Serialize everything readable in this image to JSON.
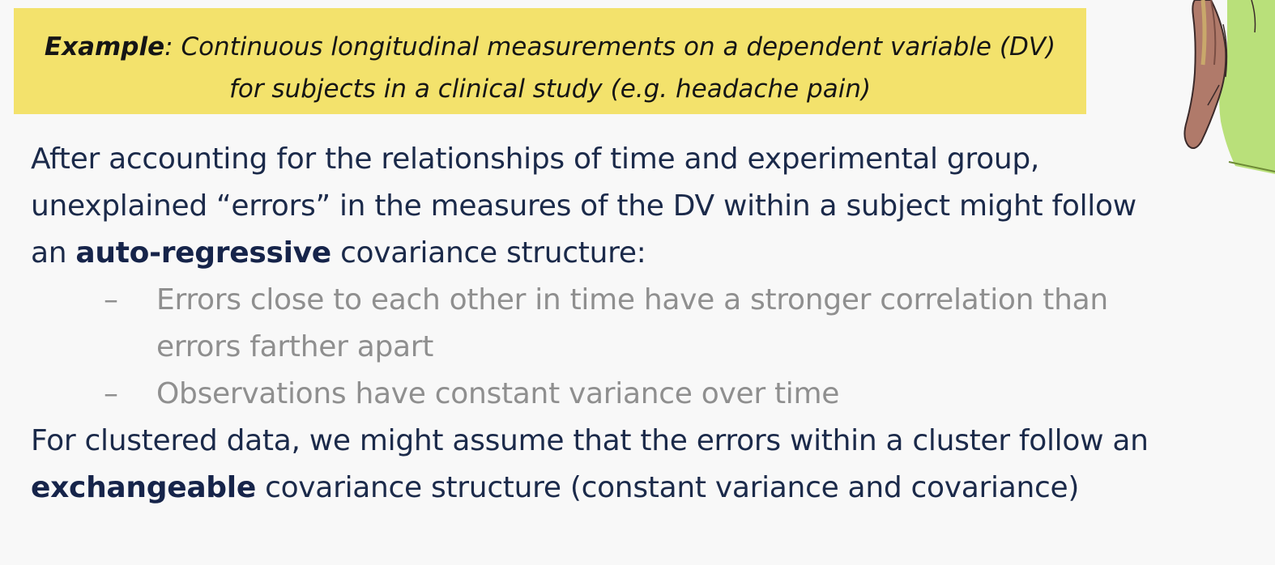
{
  "example": {
    "label": "Example",
    "sep": ": ",
    "line1": "Continuous longitudinal measurements on a dependent variable (DV)",
    "line2": "for subjects in a clinical study (e.g. headache pain)"
  },
  "paragraph1": {
    "before": "After accounting for the relationships of time and experimental group, unexplained “errors” in the measures of the DV within a subject might follow an ",
    "bold": "auto-regressive",
    "after": " covariance structure:"
  },
  "bullets": [
    {
      "dash": "–",
      "text": "Errors close to each other in time have a stronger correlation than errors farther apart"
    },
    {
      "dash": "–",
      "text": "Observations have constant variance over time"
    }
  ],
  "paragraph2": {
    "before": "For clustered data, we might assume that the errors within a cluster follow an ",
    "bold": "exchangeable",
    "after": " covariance structure (constant variance and covariance)"
  },
  "colors": {
    "highlight": "#f3e26c",
    "body_text": "#1b2a4a",
    "bullet_text": "#8f8f8f"
  },
  "figure": {
    "icon": "cartoon-person-icon"
  }
}
